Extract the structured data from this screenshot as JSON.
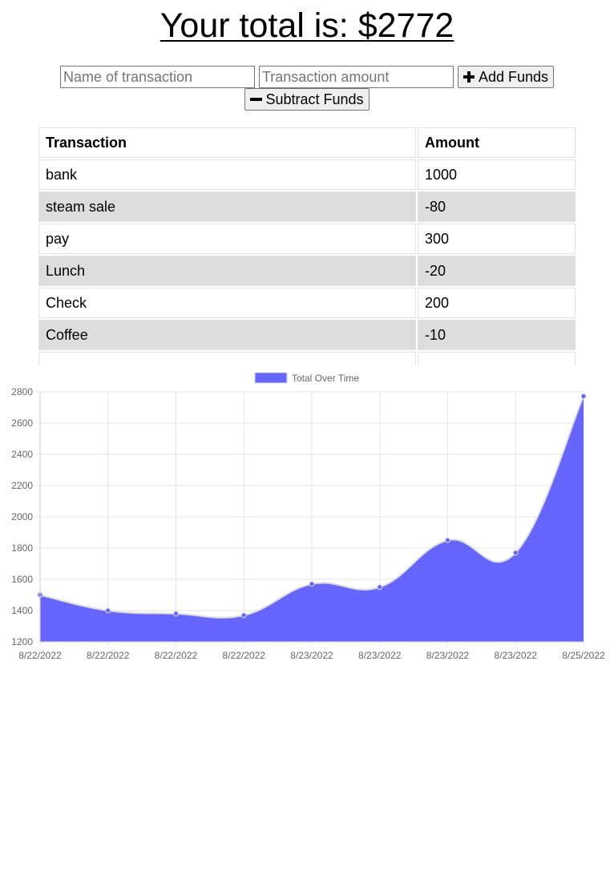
{
  "header": {
    "prefix": "Your total is: $",
    "total": "2772"
  },
  "form": {
    "name_placeholder": "Name of transaction",
    "amount_placeholder": "Transaction amount",
    "add_label": "Add Funds",
    "subtract_label": "Subtract Funds"
  },
  "table": {
    "headers": [
      "Transaction",
      "Amount"
    ],
    "rows": [
      {
        "name": "bank",
        "amount": "1000"
      },
      {
        "name": "steam sale",
        "amount": "-80"
      },
      {
        "name": "pay",
        "amount": "300"
      },
      {
        "name": "Lunch",
        "amount": "-20"
      },
      {
        "name": "Check",
        "amount": "200"
      },
      {
        "name": "Coffee",
        "amount": "-10"
      },
      {
        "name": "",
        "amount": ""
      }
    ]
  },
  "chart_data": {
    "type": "area",
    "legend": [
      "Total Over Time"
    ],
    "legend_position": "top",
    "fill_color": "#6666ff",
    "x": [
      "8/22/2022",
      "8/22/2022",
      "8/22/2022",
      "8/22/2022",
      "8/23/2022",
      "8/23/2022",
      "8/23/2022",
      "8/23/2022",
      "8/25/2022"
    ],
    "series": [
      {
        "name": "Total Over Time",
        "values": [
          1500,
          1400,
          1380,
          1370,
          1570,
          1550,
          1850,
          1770,
          2772
        ]
      }
    ],
    "ylim": [
      1200,
      2800
    ],
    "yticks": [
      1200,
      1400,
      1600,
      1800,
      2000,
      2200,
      2400,
      2600,
      2800
    ],
    "grid": true
  }
}
